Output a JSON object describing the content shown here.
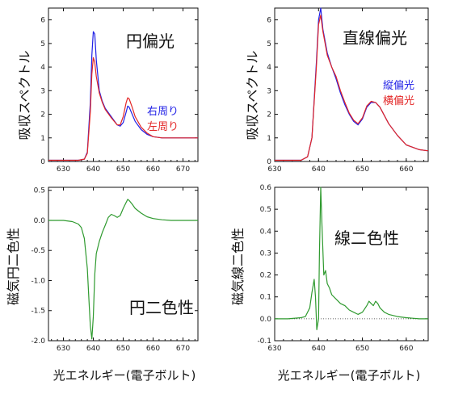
{
  "colors": {
    "blue": "#1f1fe6",
    "red": "#e32626",
    "green": "#2f9a2f",
    "axis": "#111111"
  },
  "chart_data": [
    {
      "type": "line",
      "ylabel": "吸収スペクトル",
      "xlim": [
        625,
        675
      ],
      "ylim": [
        0,
        6.5
      ],
      "xticks": [
        630,
        640,
        650,
        660,
        670
      ],
      "yticks": [
        0,
        1,
        2,
        3,
        4,
        5,
        6
      ],
      "annotations": [
        "円偏光"
      ],
      "series": [
        {
          "name": "右周り",
          "color": "#1f1fe6",
          "x": [
            625,
            635,
            637,
            638,
            639,
            639.5,
            640,
            640.5,
            641,
            642,
            643,
            644,
            646,
            648,
            649,
            650,
            651,
            651.5,
            652,
            653,
            654,
            656,
            658,
            660,
            663,
            666,
            670,
            675
          ],
          "y": [
            0.05,
            0.05,
            0.1,
            0.4,
            2.5,
            4.5,
            5.5,
            5.4,
            4.3,
            3.0,
            2.55,
            2.25,
            1.9,
            1.55,
            1.5,
            1.65,
            2.1,
            2.35,
            2.3,
            2.0,
            1.7,
            1.35,
            1.15,
            1.05,
            1.0,
            1.0,
            1.0,
            1.0
          ]
        },
        {
          "name": "左周り",
          "color": "#e32626",
          "x": [
            625,
            635,
            637,
            638,
            639,
            639.5,
            640,
            640.5,
            641,
            642,
            643,
            644,
            646,
            648,
            649,
            650,
            651,
            651.5,
            652,
            653,
            654,
            656,
            658,
            660,
            663,
            666,
            670,
            675
          ],
          "y": [
            0.05,
            0.05,
            0.1,
            0.35,
            2.1,
            3.7,
            4.4,
            4.2,
            3.6,
            2.9,
            2.5,
            2.2,
            1.85,
            1.55,
            1.55,
            1.9,
            2.5,
            2.7,
            2.65,
            2.3,
            1.9,
            1.45,
            1.2,
            1.05,
            1.0,
            1.0,
            1.0,
            1.0
          ]
        }
      ]
    },
    {
      "type": "line",
      "ylabel": "吸収スペクトル",
      "xlim": [
        630,
        665
      ],
      "ylim": [
        0,
        6.5
      ],
      "xticks": [
        630,
        640,
        650,
        660
      ],
      "yticks": [
        0,
        1,
        2,
        3,
        4,
        5,
        6
      ],
      "annotations": [
        "直線偏光"
      ],
      "series": [
        {
          "name": "縦偏光",
          "color": "#1f1fe6",
          "x": [
            630,
            636,
            637.5,
            638.5,
            639.5,
            640,
            640.5,
            641,
            642,
            643,
            644,
            645,
            646,
            647,
            648,
            649,
            650,
            651,
            652,
            653,
            654,
            656,
            658,
            660,
            663,
            665
          ],
          "y": [
            0.05,
            0.05,
            0.2,
            1.0,
            4.2,
            6.0,
            6.5,
            5.6,
            4.6,
            4.0,
            3.5,
            2.9,
            2.4,
            2.0,
            1.7,
            1.55,
            1.8,
            2.3,
            2.5,
            2.5,
            2.3,
            1.6,
            1.1,
            0.7,
            0.5,
            0.45
          ]
        },
        {
          "name": "横偏光",
          "color": "#e32626",
          "x": [
            630,
            636,
            637.5,
            638.5,
            639.5,
            640,
            640.5,
            641,
            642,
            643,
            644,
            645,
            646,
            647,
            648,
            649,
            650,
            651,
            652,
            653,
            654,
            656,
            658,
            660,
            663,
            665
          ],
          "y": [
            0.05,
            0.05,
            0.2,
            1.0,
            4.0,
            5.8,
            6.2,
            5.5,
            4.5,
            4.0,
            3.6,
            3.0,
            2.5,
            2.05,
            1.75,
            1.6,
            1.85,
            2.35,
            2.55,
            2.5,
            2.3,
            1.6,
            1.1,
            0.7,
            0.5,
            0.45
          ]
        }
      ]
    },
    {
      "type": "line",
      "ylabel": "磁気円二色性",
      "xlabel": "光エネルギー(電子ボルト)",
      "xlim": [
        625,
        675
      ],
      "ylim": [
        -2.0,
        0.55
      ],
      "xticks": [
        630,
        640,
        650,
        660,
        670
      ],
      "yticks": [
        -2.0,
        -1.5,
        -1.0,
        -0.5,
        0.0,
        0.5
      ],
      "yticklabels": [
        "-2.0",
        "-1.5",
        "-1.0",
        "-0.5",
        "0.0",
        "0.5"
      ],
      "annotations": [
        "円二色性"
      ],
      "series": [
        {
          "name": "",
          "color": "#2f9a2f",
          "x": [
            625,
            630,
            633,
            635,
            636,
            637,
            638,
            638.5,
            639,
            639.5,
            640,
            640.5,
            641,
            642,
            643,
            644,
            645,
            646,
            647,
            648,
            649,
            650,
            651,
            651.5,
            652,
            653,
            654,
            656,
            658,
            660,
            663,
            666,
            670,
            675
          ],
          "y": [
            0.0,
            0.0,
            -0.02,
            -0.06,
            -0.12,
            -0.3,
            -0.8,
            -1.3,
            -1.75,
            -1.97,
            -1.6,
            -0.9,
            -0.55,
            -0.35,
            -0.2,
            -0.08,
            0.05,
            0.1,
            0.08,
            0.05,
            0.08,
            0.2,
            0.3,
            0.35,
            0.33,
            0.27,
            0.2,
            0.12,
            0.06,
            0.03,
            0.01,
            0.0,
            0.0,
            0.0
          ]
        }
      ]
    },
    {
      "type": "line",
      "ylabel": "磁気線二色性",
      "xlabel": "光エネルギー(電子ボルト)",
      "xlim": [
        630,
        665
      ],
      "ylim": [
        -0.1,
        0.6
      ],
      "xticks": [
        630,
        640,
        650,
        660
      ],
      "yticks": [
        -0.1,
        0.0,
        0.1,
        0.2,
        0.3,
        0.4,
        0.5,
        0.6
      ],
      "yticklabels": [
        "-0.1",
        "0.0",
        "0.1",
        "0.2",
        "0.3",
        "0.4",
        "0.5",
        "0.6"
      ],
      "annotations": [
        "線二色性"
      ],
      "series": [
        {
          "name": "",
          "color": "#2f9a2f",
          "x": [
            630,
            633,
            636,
            637,
            638,
            638.5,
            639,
            639.3,
            639.6,
            640,
            640.2,
            640.5,
            640.8,
            641.2,
            641.6,
            642,
            642.5,
            643,
            644,
            645,
            646,
            647,
            648,
            649,
            650,
            651,
            651.5,
            652,
            652.5,
            653,
            653.5,
            654,
            655,
            656,
            658,
            660,
            663,
            665
          ],
          "y": [
            0.0,
            0.0,
            0.005,
            0.01,
            0.05,
            0.12,
            0.18,
            0.1,
            -0.05,
            0.0,
            0.3,
            0.6,
            0.42,
            0.2,
            0.22,
            0.16,
            0.14,
            0.11,
            0.09,
            0.07,
            0.06,
            0.04,
            0.03,
            0.02,
            0.03,
            0.06,
            0.08,
            0.07,
            0.06,
            0.08,
            0.07,
            0.05,
            0.03,
            0.02,
            0.01,
            0.005,
            0.0,
            0.0
          ]
        }
      ]
    }
  ],
  "legend": {
    "circular": [
      {
        "label": "右周り",
        "color": "#1f1fe6"
      },
      {
        "label": "左周り",
        "color": "#e32626"
      }
    ],
    "linear": [
      {
        "label": "縦偏光",
        "color": "#1f1fe6"
      },
      {
        "label": "横偏光",
        "color": "#e32626"
      }
    ]
  }
}
